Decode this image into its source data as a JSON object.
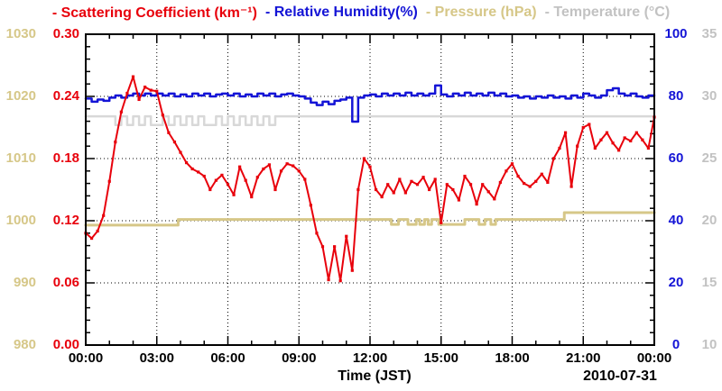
{
  "chart_data": {
    "type": "line",
    "title_legend": [
      {
        "label": "- Scattering Coefficient (km⁻¹)",
        "color": "#e8000b"
      },
      {
        "label": "- Relative Humidity(%)",
        "color": "#1414d6"
      },
      {
        "label": "- Pressure (hPa)",
        "color": "#d6c788"
      },
      {
        "label": "- Temperature (°C)",
        "color": "#c2c2c2"
      }
    ],
    "xlabel": "Time (JST)",
    "date": "2010-07-31",
    "x": {
      "range_hours": [
        0,
        24
      ],
      "major_tick_hours": 3,
      "minor_tick_hours": 1,
      "tick_labels": [
        "00:00",
        "03:00",
        "06:00",
        "09:00",
        "12:00",
        "15:00",
        "18:00",
        "21:00",
        "00:00"
      ],
      "grid": "dotted vertical at each 3-hour major tick"
    },
    "axes": [
      {
        "name": "pressure",
        "side": "left-outer",
        "color": "#d6c788",
        "range": [
          980,
          1030
        ],
        "tick_labels": [
          "980",
          "990",
          "1000",
          "1010",
          "1020",
          "1030"
        ]
      },
      {
        "name": "scattering",
        "side": "left-inner",
        "color": "#e8000b",
        "range": [
          0,
          0.3
        ],
        "tick_labels": [
          "0.00",
          "0.06",
          "0.12",
          "0.18",
          "0.24",
          "0.30"
        ]
      },
      {
        "name": "humidity",
        "side": "right-inner",
        "color": "#1414d6",
        "range": [
          0,
          100
        ],
        "tick_labels": [
          "0",
          "20",
          "40",
          "60",
          "80",
          "100"
        ]
      },
      {
        "name": "temperature",
        "side": "right-outer",
        "color": "#c2c2c2",
        "range": [
          10,
          35
        ],
        "tick_labels": [
          "10",
          "15",
          "20",
          "25",
          "30",
          "35"
        ]
      }
    ],
    "grid_horizontal_at_scattering": [
      0.06,
      0.12,
      0.18,
      0.24
    ],
    "series": [
      {
        "name": "Temperature (°C)",
        "axis": "temperature",
        "color": "#d8d8d8",
        "width": 2.5,
        "mode": "step",
        "t0": 0,
        "t_step": 0.25,
        "values": [
          28.4,
          28.4,
          28.4,
          28.4,
          28.4,
          27.7,
          28.4,
          27.7,
          28.4,
          27.7,
          28.4,
          27.7,
          27.7,
          28.4,
          27.7,
          28.4,
          27.7,
          28.4,
          27.7,
          28.4,
          27.7,
          27.7,
          28.4,
          27.7,
          28.4,
          27.7,
          28.4,
          27.7,
          28.4,
          27.7,
          28.4,
          27.7,
          28.4,
          28.4,
          28.4,
          28.4,
          28.4,
          28.4,
          28.4,
          28.4,
          28.4,
          28.4,
          28.4,
          28.4,
          28.4,
          28.4,
          28.4,
          28.4,
          28.4,
          28.4,
          28.4,
          28.4,
          28.4,
          28.4,
          28.4,
          28.4,
          28.4,
          28.4,
          28.4,
          28.4,
          28.4,
          28.4,
          28.4,
          28.4,
          28.4,
          28.4,
          28.4,
          28.4,
          28.4,
          28.4,
          28.4,
          28.4,
          28.4,
          28.4,
          28.4,
          28.4,
          28.4,
          28.4,
          28.4,
          28.4,
          28.4,
          28.4,
          28.4,
          28.4,
          28.4,
          28.4,
          28.4,
          28.4,
          28.4,
          28.4,
          28.4,
          28.4,
          28.4,
          28.4,
          28.4,
          28.4,
          28.4
        ]
      },
      {
        "name": "Pressure (hPa)",
        "axis": "pressure",
        "color": "#d6c788",
        "width": 3,
        "mode": "step-points",
        "points": [
          [
            0,
            999.3
          ],
          [
            3.9,
            1000.2
          ],
          [
            12.9,
            999.4
          ],
          [
            13.2,
            1000.2
          ],
          [
            13.6,
            999.4
          ],
          [
            13.95,
            1000.2
          ],
          [
            14.1,
            999.4
          ],
          [
            14.3,
            1000.2
          ],
          [
            14.45,
            999.4
          ],
          [
            14.6,
            1000.2
          ],
          [
            14.9,
            999.4
          ],
          [
            16.0,
            1000.2
          ],
          [
            16.6,
            999.4
          ],
          [
            16.85,
            1000.2
          ],
          [
            17.1,
            999.4
          ],
          [
            17.3,
            1000.2
          ],
          [
            20.2,
            1001.3
          ],
          [
            24,
            1001.3
          ]
        ]
      },
      {
        "name": "Relative Humidity (%)",
        "axis": "humidity",
        "color": "#1414d6",
        "width": 2.5,
        "mode": "step",
        "t0": 0,
        "t_step": 0.25,
        "values": [
          79.3,
          78.3,
          79.0,
          78.6,
          79.6,
          80.3,
          79.6,
          80.3,
          80.9,
          80.3,
          80.9,
          80.3,
          80.9,
          80.3,
          80.9,
          80.0,
          80.6,
          80.0,
          80.9,
          80.3,
          80.9,
          80.0,
          80.6,
          80.9,
          80.3,
          80.9,
          80.0,
          80.6,
          80.0,
          80.9,
          80.3,
          80.9,
          80.0,
          80.6,
          80.9,
          80.3,
          80.0,
          79.3,
          78.0,
          77.2,
          78.3,
          77.5,
          78.6,
          79.0,
          79.6,
          71.9,
          79.6,
          80.3,
          80.6,
          80.0,
          80.9,
          80.3,
          80.9,
          80.3,
          81.2,
          80.3,
          80.9,
          80.3,
          80.9,
          83.5,
          80.6,
          80.0,
          80.9,
          80.3,
          81.2,
          80.3,
          80.9,
          80.3,
          81.2,
          80.3,
          80.9,
          80.0,
          80.3,
          79.6,
          80.0,
          79.3,
          80.0,
          79.6,
          80.3,
          79.6,
          80.0,
          79.3,
          80.3,
          79.6,
          80.9,
          80.3,
          79.6,
          80.3,
          82.0,
          82.6,
          80.9,
          80.3,
          80.9,
          80.0,
          79.6,
          80.3,
          80.3
        ]
      },
      {
        "name": "Scattering Coefficient (km⁻¹)",
        "axis": "scattering",
        "color": "#e8000b",
        "width": 2,
        "mode": "linear",
        "markers": true,
        "t0": 0,
        "t_step": 0.25,
        "values": [
          0.108,
          0.103,
          0.11,
          0.125,
          0.158,
          0.196,
          0.225,
          0.243,
          0.259,
          0.237,
          0.249,
          0.246,
          0.245,
          0.222,
          0.205,
          0.196,
          0.186,
          0.176,
          0.17,
          0.167,
          0.163,
          0.15,
          0.159,
          0.164,
          0.155,
          0.145,
          0.172,
          0.159,
          0.143,
          0.162,
          0.17,
          0.174,
          0.15,
          0.168,
          0.175,
          0.173,
          0.168,
          0.16,
          0.135,
          0.108,
          0.095,
          0.063,
          0.095,
          0.062,
          0.105,
          0.072,
          0.15,
          0.18,
          0.172,
          0.15,
          0.143,
          0.155,
          0.147,
          0.16,
          0.147,
          0.158,
          0.155,
          0.162,
          0.15,
          0.16,
          0.118,
          0.155,
          0.15,
          0.14,
          0.163,
          0.155,
          0.136,
          0.155,
          0.148,
          0.141,
          0.157,
          0.168,
          0.175,
          0.163,
          0.156,
          0.153,
          0.158,
          0.165,
          0.157,
          0.18,
          0.19,
          0.205,
          0.153,
          0.192,
          0.21,
          0.213,
          0.19,
          0.198,
          0.205,
          0.195,
          0.188,
          0.2,
          0.197,
          0.205,
          0.198,
          0.19,
          0.22
        ]
      }
    ]
  }
}
